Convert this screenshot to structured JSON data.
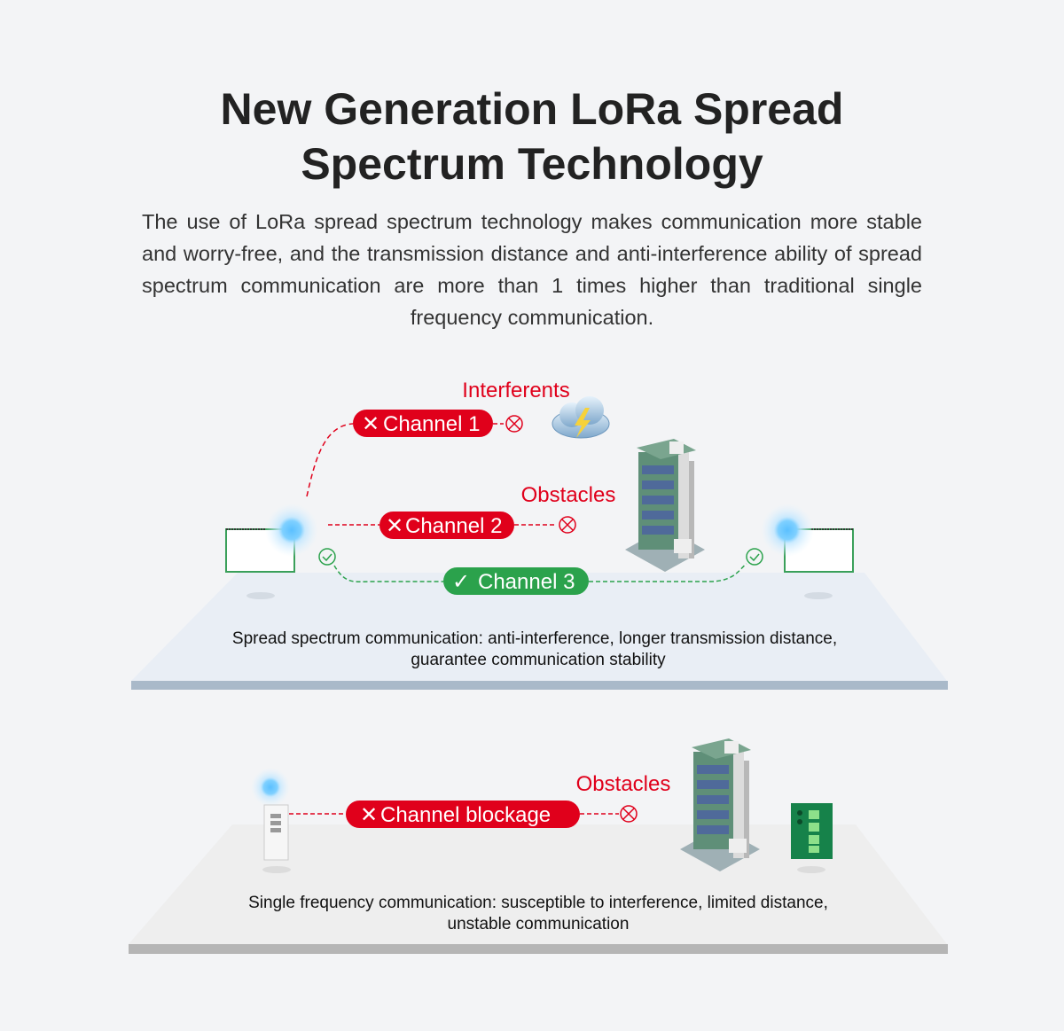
{
  "header": {
    "title_line1": "New Generation LoRa Spread",
    "title_line2": "Spectrum Technology",
    "description": "The use of LoRa spread spectrum technology makes communication more stable and worry-free, and the transmission distance and anti-interference ability of spread spectrum communication are more than 1 times higher than traditional single frequency communication."
  },
  "spread_spectrum": {
    "interferents_label": "Interferents",
    "obstacles_label": "Obstacles",
    "channels": [
      {
        "label": "Channel 1",
        "status": "blocked",
        "icon": "x-icon"
      },
      {
        "label": "Channel 2",
        "status": "blocked",
        "icon": "x-icon"
      },
      {
        "label": "Channel 3",
        "status": "ok",
        "icon": "check-icon"
      }
    ],
    "caption_line1": "Spread spectrum communication: anti-interference, longer transmission distance,",
    "caption_line2": "guarantee communication stability"
  },
  "single_frequency": {
    "obstacles_label": "Obstacles",
    "channel_label": "Channel blockage",
    "caption_line1": "Single frequency communication: susceptible to interference, limited distance,",
    "caption_line2": "unstable communication"
  },
  "colors": {
    "red": "#e0001b",
    "green": "#2ba24c",
    "signal_blue": "#6cc7ff",
    "top_platform": "#e9eef5",
    "bottom_platform": "#eeeeee"
  }
}
